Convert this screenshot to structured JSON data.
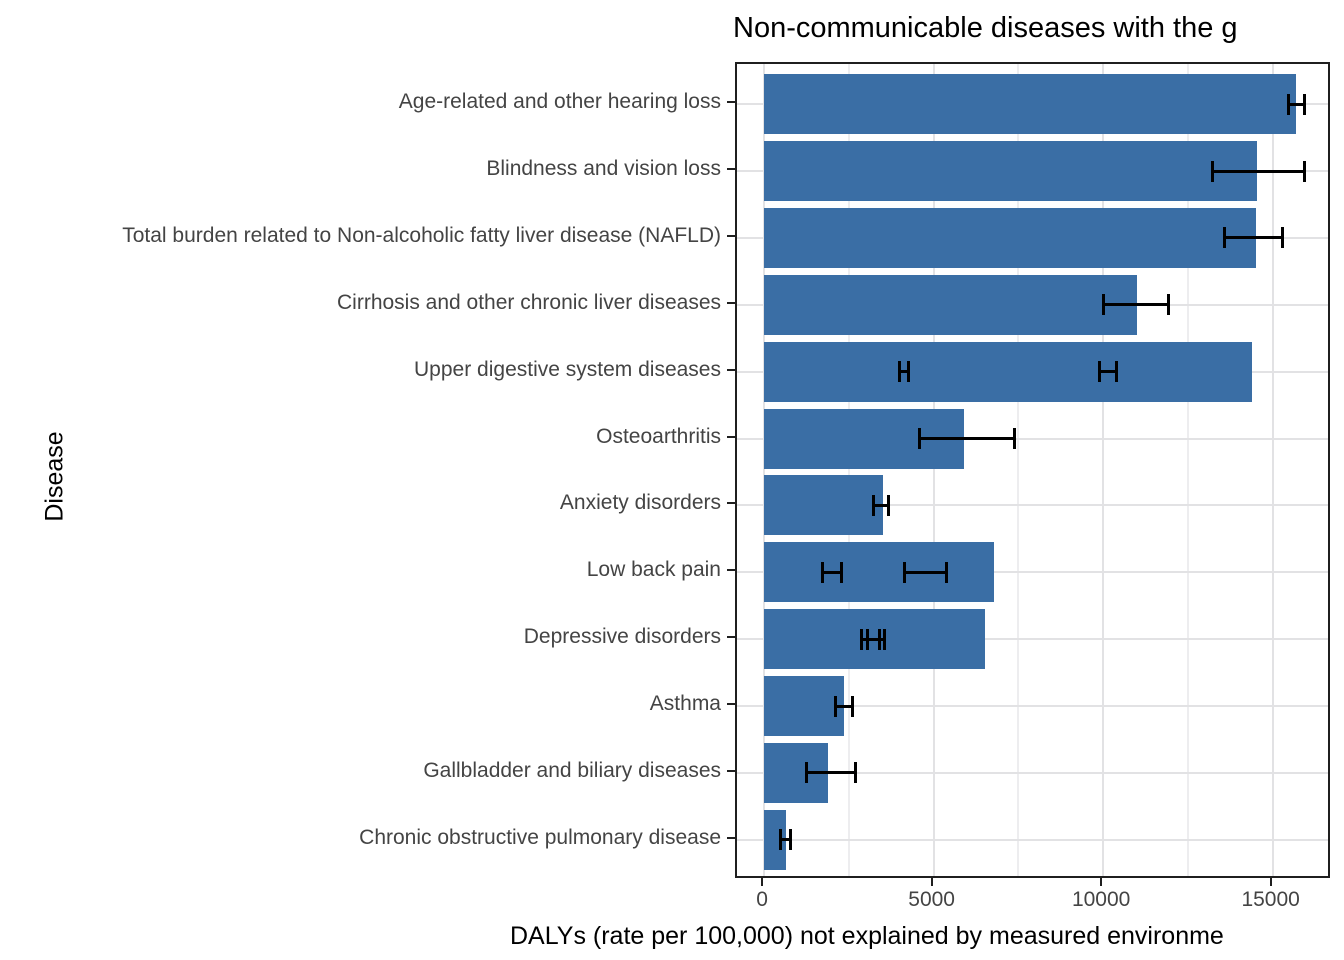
{
  "title": "Non-communicable diseases with the g",
  "x_axis_title": "DALYs (rate per 100,000) not explained by measured environme",
  "y_axis_title": "Disease",
  "style": {
    "bar_color": "#3a6ea5",
    "error_bar_color": "#000000",
    "grid_major_color": "#e2e2e4",
    "grid_minor_color": "#ededef",
    "panel_border_color": "#1f1f1f",
    "axis_text_color": "#444444",
    "title_color": "#000000"
  },
  "chart_data": {
    "type": "bar",
    "orientation": "horizontal",
    "title": "Non-communicable diseases with the g",
    "xlabel": "DALYs (rate per 100,000) not explained by measured environme",
    "ylabel": "Disease",
    "xlim": [
      -800,
      16750
    ],
    "x_ticks": [
      0,
      5000,
      10000,
      15000
    ],
    "x_tick_labels": [
      "0",
      "5000",
      "10000",
      "15000"
    ],
    "x_minor_gridlines": [
      2500,
      7500,
      12500
    ],
    "grid": true,
    "legend": false,
    "categories": [
      "Age-related and other hearing loss",
      "Blindness and vision loss",
      "Total burden related to Non-alcoholic fatty liver disease (NAFLD)",
      "Cirrhosis and other chronic liver diseases",
      "Upper digestive system diseases",
      "Osteoarthritis",
      "Anxiety disorders",
      "Low back pain",
      "Depressive disorders",
      "Asthma",
      "Gallbladder and biliary diseases",
      "Chronic obstructive pulmonary disease"
    ],
    "values": [
      15700,
      14550,
      14500,
      11000,
      14400,
      5900,
      3510,
      6790,
      6520,
      2370,
      1890,
      650
    ],
    "error_bars": [
      [
        [
          15450,
          15950
        ]
      ],
      [
        [
          13200,
          15950
        ]
      ],
      [
        [
          13550,
          15300
        ]
      ],
      [
        [
          10000,
          11950
        ]
      ],
      [
        [
          3990,
          4280
        ],
        [
          9890,
          10420
        ]
      ],
      [
        [
          4580,
          7400
        ]
      ],
      [
        [
          3220,
          3690
        ]
      ],
      [
        [
          1720,
          2300
        ],
        [
          4130,
          5400
        ]
      ],
      [
        [
          2870,
          3430
        ],
        [
          3040,
          3570
        ]
      ],
      [
        [
          2100,
          2630
        ]
      ],
      [
        [
          1240,
          2720
        ]
      ],
      [
        [
          475,
          800
        ]
      ]
    ]
  }
}
